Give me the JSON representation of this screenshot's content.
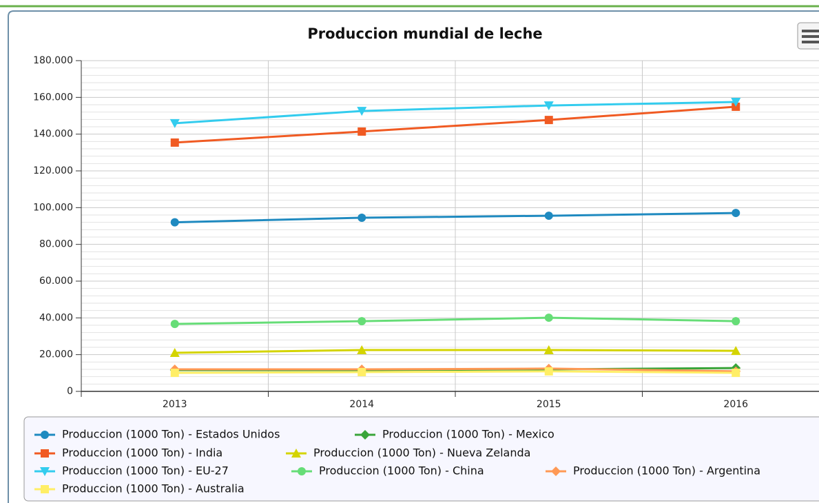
{
  "chart_data": {
    "type": "line",
    "title": "Produccion mundial de leche",
    "categories": [
      "2013",
      "2014",
      "2015",
      "2016"
    ],
    "ylim": [
      0,
      180000
    ],
    "yticks": [
      {
        "value": 0,
        "label": "0"
      },
      {
        "value": 20000,
        "label": "20.000"
      },
      {
        "value": 40000,
        "label": "40.000"
      },
      {
        "value": 60000,
        "label": "60.000"
      },
      {
        "value": 80000,
        "label": "80.000"
      },
      {
        "value": 100000,
        "label": "100.000"
      },
      {
        "value": 120000,
        "label": "120.000"
      },
      {
        "value": 140000,
        "label": "140.000"
      },
      {
        "value": 160000,
        "label": "160.000"
      },
      {
        "value": 180000,
        "label": "180.000"
      }
    ],
    "grid": true,
    "series": [
      {
        "name": "Produccion (1000 Ton) - Estados Unidos",
        "color": "#1f8ac0",
        "marker": "circle",
        "values": [
          92000,
          94500,
          95600,
          97100
        ]
      },
      {
        "name": "Produccion (1000 Ton) - Mexico",
        "color": "#3aa53a",
        "marker": "diamond",
        "values": [
          11600,
          11600,
          12000,
          12700
        ]
      },
      {
        "name": "Produccion (1000 Ton) - India",
        "color": "#f05a22",
        "marker": "square",
        "values": [
          135400,
          141400,
          147700,
          154900
        ]
      },
      {
        "name": "Produccion (1000 Ton) - Nueva Zelanda",
        "color": "#d4d400",
        "marker": "triangle",
        "values": [
          21000,
          22500,
          22500,
          22100
        ]
      },
      {
        "name": "Produccion (1000 Ton) - EU-27",
        "color": "#33ccee",
        "marker": "triangle-down",
        "values": [
          145900,
          152600,
          155600,
          157500
        ]
      },
      {
        "name": "Produccion (1000 Ton) - China",
        "color": "#66dd77",
        "marker": "circle",
        "values": [
          36700,
          38200,
          40100,
          38200
        ]
      },
      {
        "name": "Produccion (1000 Ton) - Argentina",
        "color": "#ff9955",
        "marker": "diamond",
        "values": [
          12000,
          12000,
          12400,
          10900
        ]
      },
      {
        "name": "Produccion (1000 Ton) - Australia",
        "color": "#ffee66",
        "marker": "square",
        "values": [
          10100,
          10500,
          10900,
          10100
        ]
      }
    ]
  }
}
